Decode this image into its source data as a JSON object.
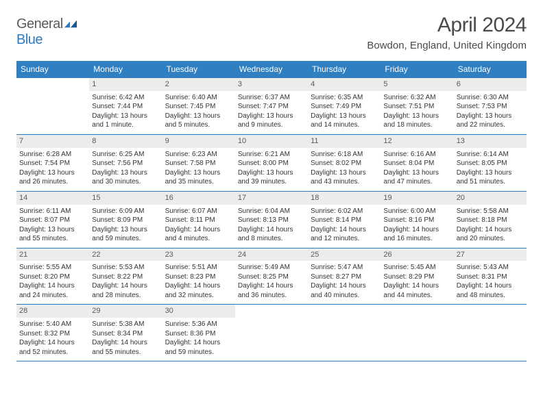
{
  "logo": {
    "text1": "General",
    "text2": "Blue"
  },
  "title": "April 2024",
  "location": "Bowdon, England, United Kingdom",
  "colors": {
    "header_bg": "#2f7fc1",
    "header_text": "#ffffff",
    "daynum_bg": "#ececec",
    "border": "#2f7fc1",
    "logo_gray": "#5a5a5a",
    "logo_blue": "#2b7bbf"
  },
  "weekdays": [
    "Sunday",
    "Monday",
    "Tuesday",
    "Wednesday",
    "Thursday",
    "Friday",
    "Saturday"
  ],
  "weeks": [
    [
      null,
      {
        "d": "1",
        "sr": "6:42 AM",
        "ss": "7:44 PM",
        "dl": "13 hours and 1 minute."
      },
      {
        "d": "2",
        "sr": "6:40 AM",
        "ss": "7:45 PM",
        "dl": "13 hours and 5 minutes."
      },
      {
        "d": "3",
        "sr": "6:37 AM",
        "ss": "7:47 PM",
        "dl": "13 hours and 9 minutes."
      },
      {
        "d": "4",
        "sr": "6:35 AM",
        "ss": "7:49 PM",
        "dl": "13 hours and 14 minutes."
      },
      {
        "d": "5",
        "sr": "6:32 AM",
        "ss": "7:51 PM",
        "dl": "13 hours and 18 minutes."
      },
      {
        "d": "6",
        "sr": "6:30 AM",
        "ss": "7:53 PM",
        "dl": "13 hours and 22 minutes."
      }
    ],
    [
      {
        "d": "7",
        "sr": "6:28 AM",
        "ss": "7:54 PM",
        "dl": "13 hours and 26 minutes."
      },
      {
        "d": "8",
        "sr": "6:25 AM",
        "ss": "7:56 PM",
        "dl": "13 hours and 30 minutes."
      },
      {
        "d": "9",
        "sr": "6:23 AM",
        "ss": "7:58 PM",
        "dl": "13 hours and 35 minutes."
      },
      {
        "d": "10",
        "sr": "6:21 AM",
        "ss": "8:00 PM",
        "dl": "13 hours and 39 minutes."
      },
      {
        "d": "11",
        "sr": "6:18 AM",
        "ss": "8:02 PM",
        "dl": "13 hours and 43 minutes."
      },
      {
        "d": "12",
        "sr": "6:16 AM",
        "ss": "8:04 PM",
        "dl": "13 hours and 47 minutes."
      },
      {
        "d": "13",
        "sr": "6:14 AM",
        "ss": "8:05 PM",
        "dl": "13 hours and 51 minutes."
      }
    ],
    [
      {
        "d": "14",
        "sr": "6:11 AM",
        "ss": "8:07 PM",
        "dl": "13 hours and 55 minutes."
      },
      {
        "d": "15",
        "sr": "6:09 AM",
        "ss": "8:09 PM",
        "dl": "13 hours and 59 minutes."
      },
      {
        "d": "16",
        "sr": "6:07 AM",
        "ss": "8:11 PM",
        "dl": "14 hours and 4 minutes."
      },
      {
        "d": "17",
        "sr": "6:04 AM",
        "ss": "8:13 PM",
        "dl": "14 hours and 8 minutes."
      },
      {
        "d": "18",
        "sr": "6:02 AM",
        "ss": "8:14 PM",
        "dl": "14 hours and 12 minutes."
      },
      {
        "d": "19",
        "sr": "6:00 AM",
        "ss": "8:16 PM",
        "dl": "14 hours and 16 minutes."
      },
      {
        "d": "20",
        "sr": "5:58 AM",
        "ss": "8:18 PM",
        "dl": "14 hours and 20 minutes."
      }
    ],
    [
      {
        "d": "21",
        "sr": "5:55 AM",
        "ss": "8:20 PM",
        "dl": "14 hours and 24 minutes."
      },
      {
        "d": "22",
        "sr": "5:53 AM",
        "ss": "8:22 PM",
        "dl": "14 hours and 28 minutes."
      },
      {
        "d": "23",
        "sr": "5:51 AM",
        "ss": "8:23 PM",
        "dl": "14 hours and 32 minutes."
      },
      {
        "d": "24",
        "sr": "5:49 AM",
        "ss": "8:25 PM",
        "dl": "14 hours and 36 minutes."
      },
      {
        "d": "25",
        "sr": "5:47 AM",
        "ss": "8:27 PM",
        "dl": "14 hours and 40 minutes."
      },
      {
        "d": "26",
        "sr": "5:45 AM",
        "ss": "8:29 PM",
        "dl": "14 hours and 44 minutes."
      },
      {
        "d": "27",
        "sr": "5:43 AM",
        "ss": "8:31 PM",
        "dl": "14 hours and 48 minutes."
      }
    ],
    [
      {
        "d": "28",
        "sr": "5:40 AM",
        "ss": "8:32 PM",
        "dl": "14 hours and 52 minutes."
      },
      {
        "d": "29",
        "sr": "5:38 AM",
        "ss": "8:34 PM",
        "dl": "14 hours and 55 minutes."
      },
      {
        "d": "30",
        "sr": "5:36 AM",
        "ss": "8:36 PM",
        "dl": "14 hours and 59 minutes."
      },
      null,
      null,
      null,
      null
    ]
  ],
  "labels": {
    "sunrise": "Sunrise:",
    "sunset": "Sunset:",
    "daylight": "Daylight:"
  }
}
